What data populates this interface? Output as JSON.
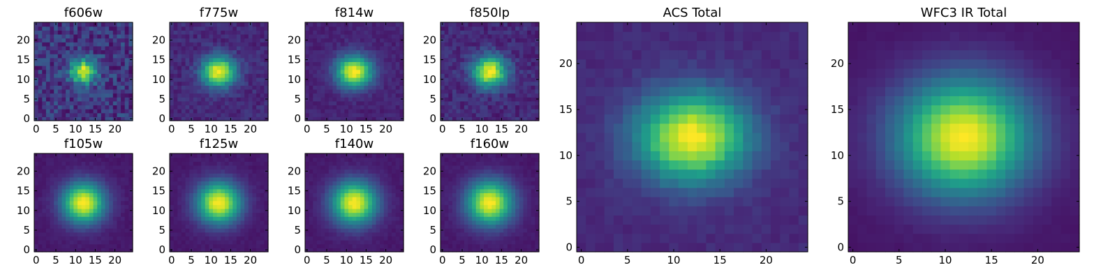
{
  "figure": {
    "background": "#ffffff",
    "colormap": "viridis"
  },
  "chart_data": [
    {
      "type": "heatmap",
      "title": "f606w",
      "xlim": [
        0,
        24
      ],
      "ylim": [
        0,
        24
      ],
      "xticks": [
        0,
        5,
        10,
        15,
        20
      ],
      "yticks": [
        0,
        5,
        10,
        15,
        20
      ],
      "center": [
        12,
        12
      ],
      "sigma": [
        2.3,
        2.1
      ],
      "background": 0.16,
      "noise": 0.13,
      "grid": false
    },
    {
      "type": "heatmap",
      "title": "f775w",
      "xlim": [
        0,
        24
      ],
      "ylim": [
        0,
        24
      ],
      "xticks": [
        0,
        5,
        10,
        15,
        20
      ],
      "yticks": [
        0,
        5,
        10,
        15,
        20
      ],
      "center": [
        12,
        12
      ],
      "sigma": [
        3.0,
        2.6
      ],
      "background": 0.12,
      "noise": 0.06,
      "grid": false
    },
    {
      "type": "heatmap",
      "title": "f814w",
      "xlim": [
        0,
        24
      ],
      "ylim": [
        0,
        24
      ],
      "xticks": [
        0,
        5,
        10,
        15,
        20
      ],
      "yticks": [
        0,
        5,
        10,
        15,
        20
      ],
      "center": [
        12,
        12
      ],
      "sigma": [
        3.2,
        2.8
      ],
      "background": 0.1,
      "noise": 0.04,
      "grid": false
    },
    {
      "type": "heatmap",
      "title": "f850lp",
      "xlim": [
        0,
        24
      ],
      "ylim": [
        0,
        24
      ],
      "xticks": [
        0,
        5,
        10,
        15,
        20
      ],
      "yticks": [
        0,
        5,
        10,
        15,
        20
      ],
      "center": [
        12,
        12
      ],
      "sigma": [
        3.0,
        2.7
      ],
      "background": 0.12,
      "noise": 0.07,
      "grid": false
    },
    {
      "type": "heatmap",
      "title": "f105w",
      "xlim": [
        0,
        24
      ],
      "ylim": [
        0,
        24
      ],
      "xticks": [
        0,
        5,
        10,
        15,
        20
      ],
      "yticks": [
        0,
        5,
        10,
        15,
        20
      ],
      "center": [
        12,
        12
      ],
      "sigma": [
        3.8,
        3.6
      ],
      "background": 0.07,
      "noise": 0.02,
      "grid": false
    },
    {
      "type": "heatmap",
      "title": "f125w",
      "xlim": [
        0,
        24
      ],
      "ylim": [
        0,
        24
      ],
      "xticks": [
        0,
        5,
        10,
        15,
        20
      ],
      "yticks": [
        0,
        5,
        10,
        15,
        20
      ],
      "center": [
        12,
        12
      ],
      "sigma": [
        3.9,
        3.7
      ],
      "background": 0.07,
      "noise": 0.02,
      "grid": false
    },
    {
      "type": "heatmap",
      "title": "f140w",
      "xlim": [
        0,
        24
      ],
      "ylim": [
        0,
        24
      ],
      "xticks": [
        0,
        5,
        10,
        15,
        20
      ],
      "yticks": [
        0,
        5,
        10,
        15,
        20
      ],
      "center": [
        12,
        12
      ],
      "sigma": [
        4.0,
        3.8
      ],
      "background": 0.07,
      "noise": 0.02,
      "grid": false
    },
    {
      "type": "heatmap",
      "title": "f160w",
      "xlim": [
        0,
        24
      ],
      "ylim": [
        0,
        24
      ],
      "xticks": [
        0,
        5,
        10,
        15,
        20
      ],
      "yticks": [
        0,
        5,
        10,
        15,
        20
      ],
      "center": [
        12,
        12
      ],
      "sigma": [
        4.1,
        3.9
      ],
      "background": 0.07,
      "noise": 0.02,
      "grid": false
    },
    {
      "type": "heatmap",
      "title": "ACS Total",
      "xlim": [
        0,
        24
      ],
      "ylim": [
        0,
        24
      ],
      "xticks": [
        0,
        5,
        10,
        15,
        20
      ],
      "yticks": [
        0,
        5,
        10,
        15,
        20
      ],
      "center": [
        12,
        12
      ],
      "sigma": [
        4.2,
        3.4
      ],
      "background": 0.12,
      "noise": 0.03,
      "grid": false
    },
    {
      "type": "heatmap",
      "title": "WFC3 IR Total",
      "xlim": [
        0,
        24
      ],
      "ylim": [
        0,
        24
      ],
      "xticks": [
        0,
        5,
        10,
        15,
        20
      ],
      "yticks": [
        0,
        5,
        10,
        15,
        20
      ],
      "center": [
        12,
        12
      ],
      "sigma": [
        5.0,
        4.4
      ],
      "background": 0.06,
      "noise": 0.01,
      "grid": false
    }
  ]
}
